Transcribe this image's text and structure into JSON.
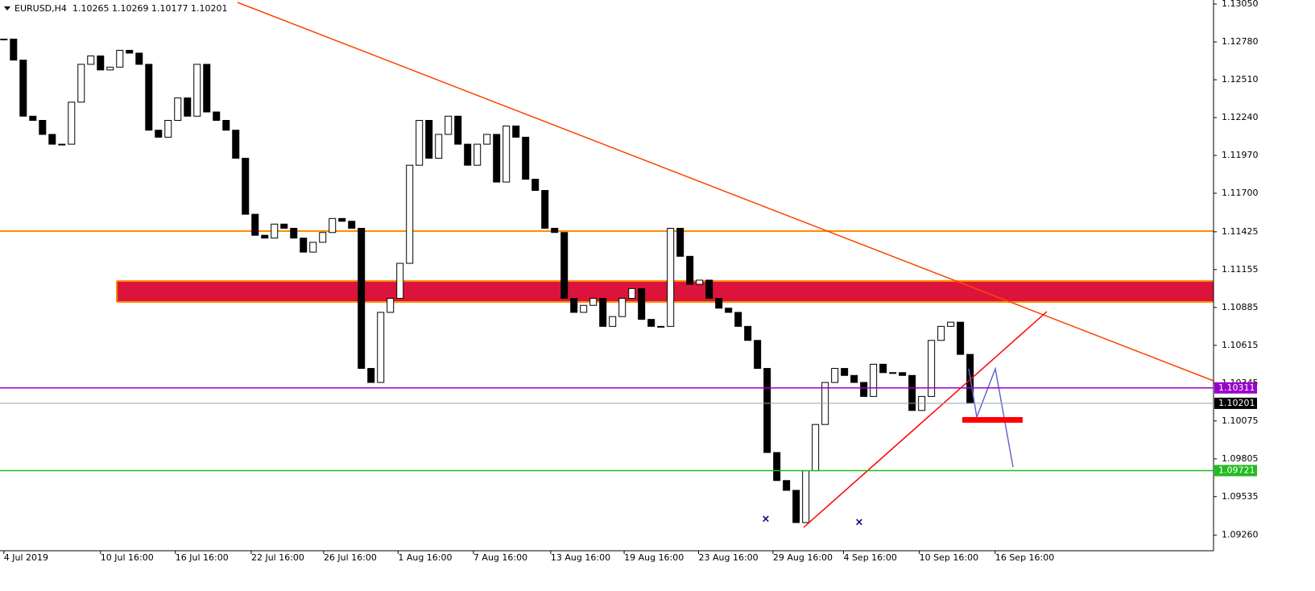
{
  "chart_data": {
    "type": "candlestick",
    "title": "EURUSD,H4",
    "subtitle": "1.10265 1.10269 1.10177 1.10201",
    "values": [
      1.128,
      1.1265,
      1.1225,
      1.1222,
      1.1212,
      1.1205,
      1.1205,
      1.1235,
      1.1262,
      1.1268,
      1.1258,
      1.126,
      1.1272,
      1.127,
      1.1262,
      1.1215,
      1.121,
      1.1222,
      1.1238,
      1.1225,
      1.1262,
      1.1228,
      1.1222,
      1.1215,
      1.1195,
      1.1155,
      1.114,
      1.1138,
      1.1148,
      1.1145,
      1.1138,
      1.1128,
      1.1135,
      1.1142,
      1.1152,
      1.115,
      1.1145,
      1.1045,
      1.1035,
      1.1085,
      1.1095,
      1.112,
      1.119,
      1.1222,
      1.1195,
      1.1212,
      1.1225,
      1.1205,
      1.119,
      1.1205,
      1.1212,
      1.1178,
      1.1218,
      1.121,
      1.118,
      1.1172,
      1.1145,
      1.1142,
      1.1095,
      1.1085,
      1.109,
      1.1095,
      1.1075,
      1.1082,
      1.1095,
      1.1102,
      1.108,
      1.1075,
      1.1075,
      1.1145,
      1.1125,
      1.1105,
      1.1108,
      1.1095,
      1.1088,
      1.1085,
      1.1075,
      1.1065,
      1.1045,
      1.0985,
      1.0965,
      1.0958,
      1.0935,
      1.0972,
      1.1005,
      1.1035,
      1.1045,
      1.104,
      1.1035,
      1.1025,
      1.1048,
      1.1042,
      1.1042,
      1.104,
      1.1015,
      1.1025,
      1.1065,
      1.1075,
      1.1078,
      1.1055,
      1.10201
    ],
    "xlim": [
      -0.4,
      125.2
    ],
    "xticks": [
      {
        "value": 0,
        "label": "4 Jul 2019"
      },
      {
        "value": 10,
        "label": "10 Jul 16:00"
      },
      {
        "value": 17.75,
        "label": "16 Jul 16:00"
      },
      {
        "value": 25.6,
        "label": "22 Jul 16:00"
      },
      {
        "value": 33.1,
        "label": "26 Jul 16:00"
      },
      {
        "value": 40.8,
        "label": "1 Aug 16:00"
      },
      {
        "value": 48.6,
        "label": "7 Aug 16:00"
      },
      {
        "value": 56.6,
        "label": "13 Aug 16:00"
      },
      {
        "value": 64.2,
        "label": "19 Aug 16:00"
      },
      {
        "value": 71.9,
        "label": "23 Aug 16:00"
      },
      {
        "value": 79.6,
        "label": "29 Aug 16:00"
      },
      {
        "value": 86.9,
        "label": "4 Sep 16:00"
      },
      {
        "value": 94.75,
        "label": "10 Sep 16:00"
      },
      {
        "value": 102.6,
        "label": "16 Sep 16:00"
      }
    ],
    "ylim": [
      1.09149,
      1.13079
    ],
    "yticks": [
      {
        "value": 1.1305,
        "label": "1.13050"
      },
      {
        "value": 1.1278,
        "label": "1.12780"
      },
      {
        "value": 1.1251,
        "label": "1.12510"
      },
      {
        "value": 1.1224,
        "label": "1.12240"
      },
      {
        "value": 1.1197,
        "label": "1.11970"
      },
      {
        "value": 1.117,
        "label": "1.11700"
      },
      1.11425,
      1.11155,
      1.10885,
      1.10615,
      1.10345,
      1.10075,
      1.09805,
      1.09535,
      {
        "value": 1.0926,
        "label": "1.09260"
      }
    ],
    "levels": [
      {
        "value": 1.10311,
        "color": "#9900cc"
      },
      {
        "value": 1.10201,
        "color": "#000000"
      },
      {
        "value": 1.09721,
        "color": "#22bb22"
      }
    ]
  }
}
